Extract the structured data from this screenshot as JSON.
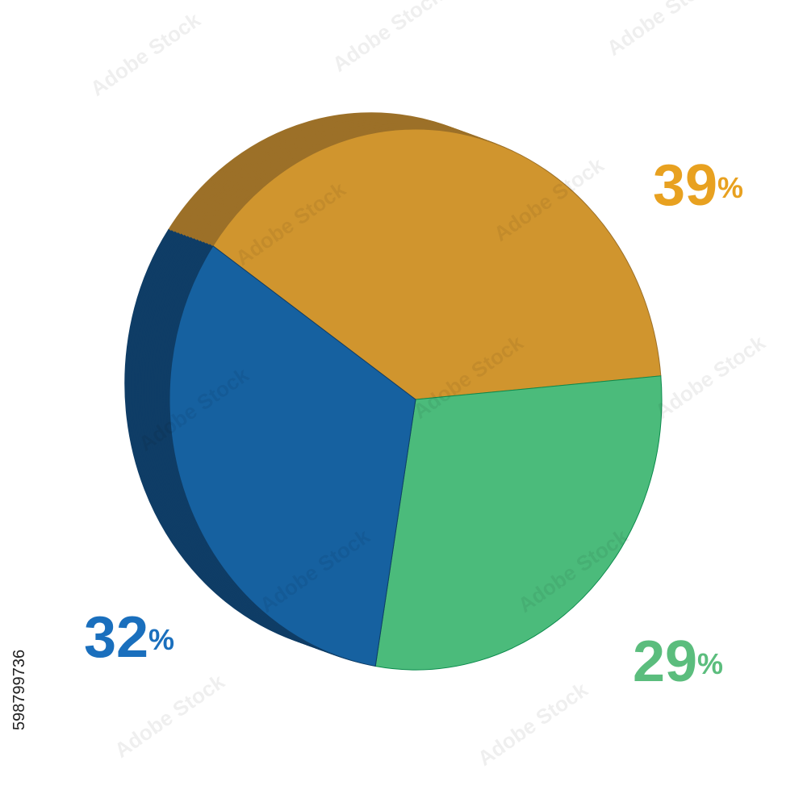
{
  "chart_data": {
    "type": "pie",
    "categories": [
      null,
      null,
      null
    ],
    "values": [
      39,
      29,
      32
    ],
    "value_labels": [
      "39%",
      "29%",
      "32%"
    ],
    "colors": [
      "#d0952e",
      "#4bbb7b",
      "#1661a0"
    ],
    "side_colors": [
      "#9c7028",
      "#0b8a4c",
      "#0f3d66"
    ],
    "label_colors": [
      "#e8a120",
      "#5bbd7d",
      "#1a6fbd"
    ]
  },
  "watermark": "Adobe Stock",
  "stock_id": "598799736"
}
